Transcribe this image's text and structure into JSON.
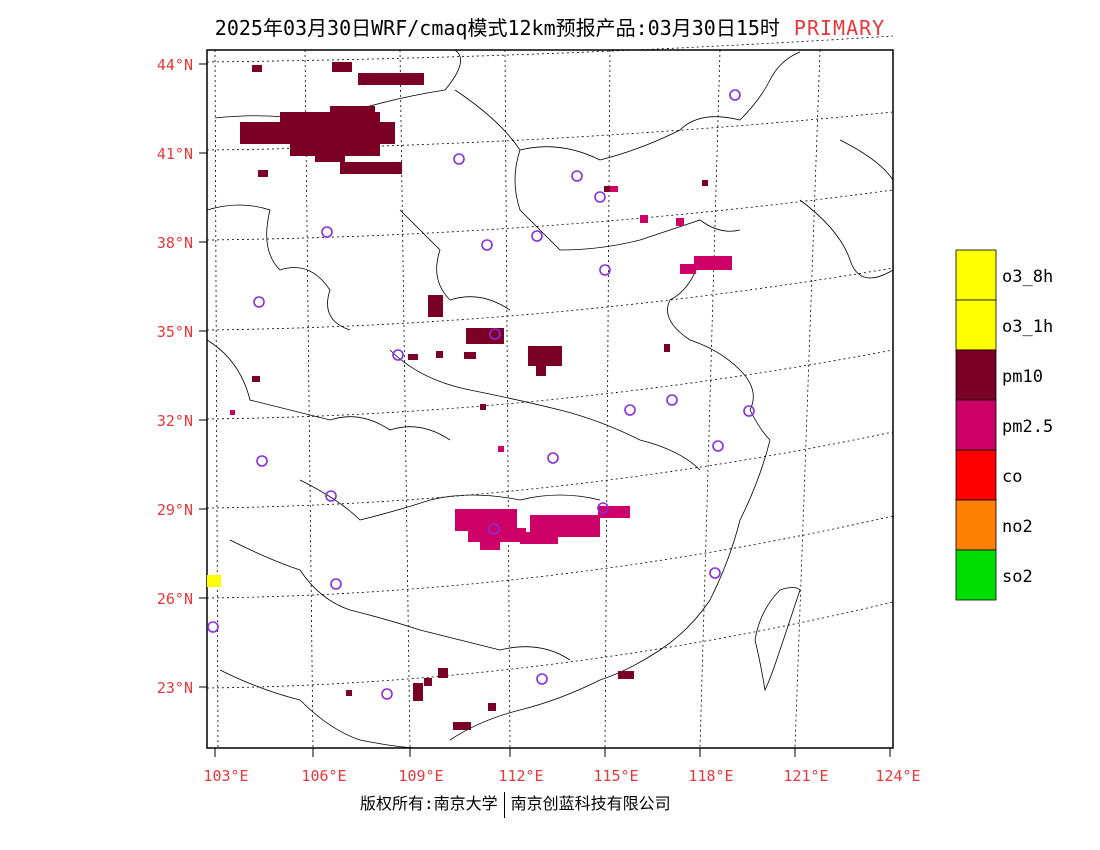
{
  "header": {
    "title": "2025年03月30日WRF/cmaq模式12km预报产品:03月30日15时",
    "tag": "PRIMARY"
  },
  "axes": {
    "lat_labels": [
      "44°N",
      "41°N",
      "38°N",
      "35°N",
      "32°N",
      "29°N",
      "26°N",
      "23°N"
    ],
    "lon_labels": [
      "103°E",
      "106°E",
      "109°E",
      "112°E",
      "115°E",
      "118°E",
      "121°E",
      "124°E"
    ],
    "label_color": "#e8373a"
  },
  "legend": {
    "items": [
      {
        "label": "o3_8h",
        "color": "#ffff00"
      },
      {
        "label": "o3_1h",
        "color": "#ffff00"
      },
      {
        "label": "pm10",
        "color": "#7a0026"
      },
      {
        "label": "pm2.5",
        "color": "#cc0066"
      },
      {
        "label": "co",
        "color": "#ff0000"
      },
      {
        "label": "no2",
        "color": "#ff7f00"
      },
      {
        "label": "so2",
        "color": "#00dd00"
      }
    ]
  },
  "footer": {
    "left": "版权所有:南京大学",
    "right": "南京创蓝科技有限公司"
  }
}
